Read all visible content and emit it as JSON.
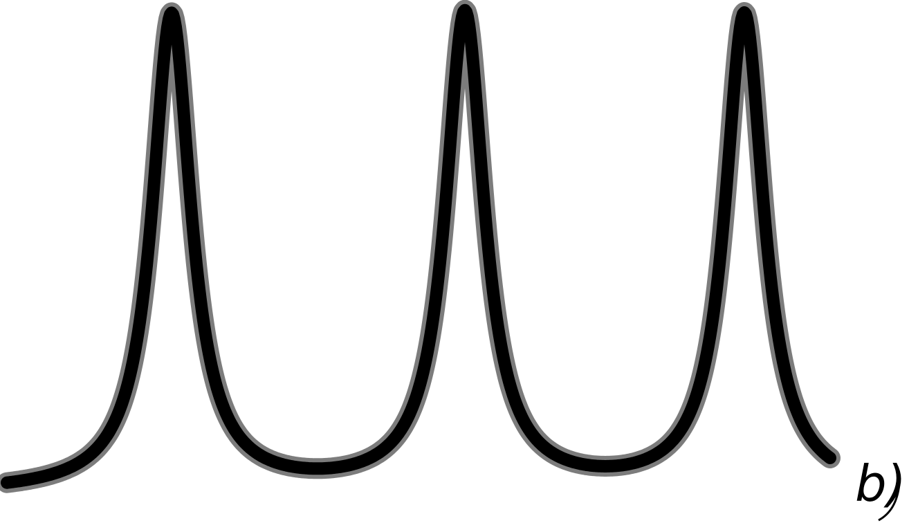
{
  "label": "b)"
}
